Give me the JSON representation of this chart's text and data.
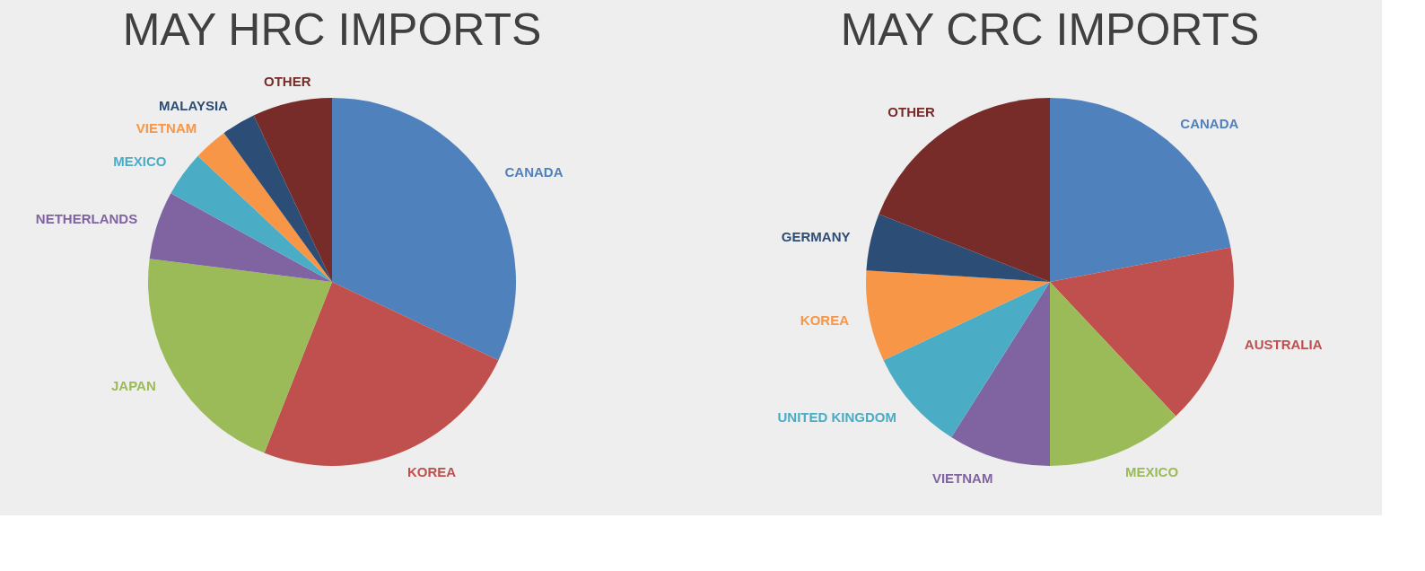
{
  "chart_data": [
    {
      "type": "pie",
      "title": "MAY HRC IMPORTS",
      "categories": [
        "CANADA",
        "KOREA",
        "JAPAN",
        "NETHERLANDS",
        "MEXICO",
        "VIETNAM",
        "MALAYSIA",
        "OTHER"
      ],
      "values": [
        32,
        24,
        21,
        6,
        4,
        3,
        3,
        7
      ],
      "colors": [
        "#4f81bd",
        "#c0504d",
        "#9bbb59",
        "#8064a2",
        "#4bacc6",
        "#f79646",
        "#2c4d75",
        "#772c2a"
      ]
    },
    {
      "type": "pie",
      "title": "MAY CRC IMPORTS",
      "categories": [
        "CANADA",
        "AUSTRALIA",
        "MEXICO",
        "VIETNAM",
        "UNITED KINGDOM",
        "KOREA",
        "GERMANY",
        "OTHER"
      ],
      "values": [
        22,
        16,
        12,
        9,
        9,
        8,
        5,
        19
      ],
      "colors": [
        "#4f81bd",
        "#c0504d",
        "#9bbb59",
        "#8064a2",
        "#4bacc6",
        "#f79646",
        "#2c4d75",
        "#772c2a"
      ]
    }
  ]
}
